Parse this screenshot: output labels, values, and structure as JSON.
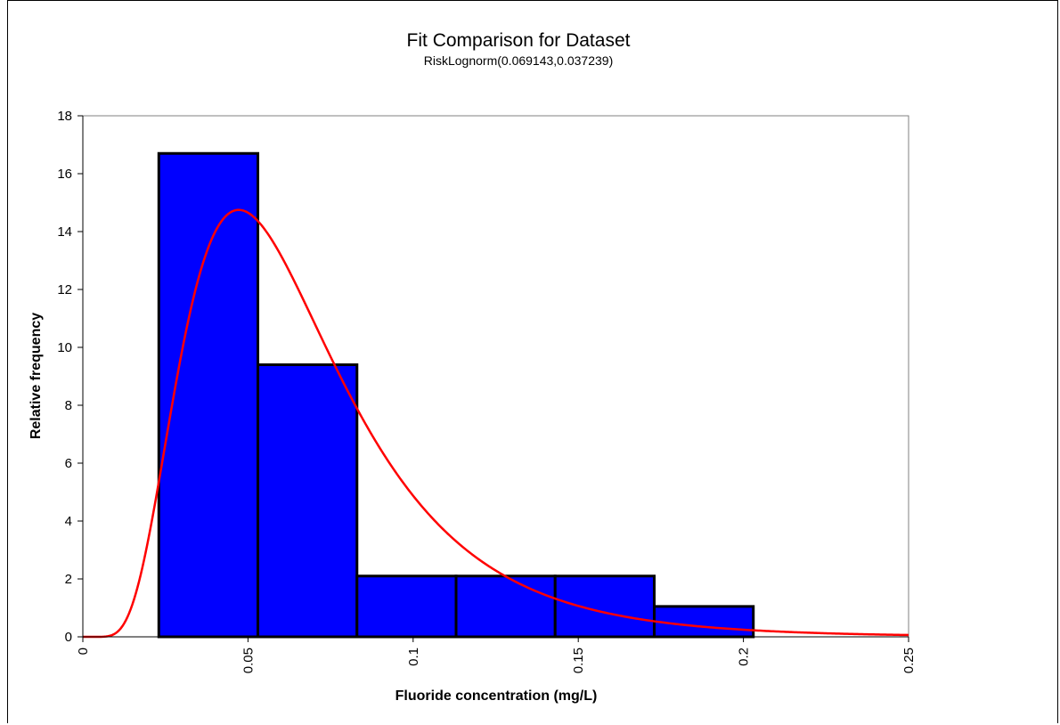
{
  "chart_data": {
    "type": "bar",
    "title": "Fit Comparison for Dataset",
    "subtitle": "RiskLognorm(0.069143,0.037239)",
    "xlabel": "Fluoride concentration (mg/L)",
    "ylabel": "Relative frequency",
    "xlim": [
      0,
      0.25
    ],
    "ylim": [
      0,
      18
    ],
    "x_ticks": [
      0,
      0.05,
      0.1,
      0.15,
      0.2,
      0.25
    ],
    "x_tick_labels": [
      "0",
      "0.05",
      "0.1",
      "0.15",
      "0.2",
      "0.25"
    ],
    "y_ticks": [
      0,
      2,
      4,
      6,
      8,
      10,
      12,
      14,
      16,
      18
    ],
    "y_tick_labels": [
      "0",
      "2",
      "4",
      "6",
      "8",
      "10",
      "12",
      "14",
      "16",
      "18"
    ],
    "grid": false,
    "histogram": {
      "bins": [
        {
          "x0": 0.023,
          "x1": 0.053,
          "value": 16.7
        },
        {
          "x0": 0.053,
          "x1": 0.083,
          "value": 9.4
        },
        {
          "x0": 0.083,
          "x1": 0.113,
          "value": 2.1
        },
        {
          "x0": 0.113,
          "x1": 0.143,
          "value": 2.1
        },
        {
          "x0": 0.143,
          "x1": 0.173,
          "value": 2.1
        },
        {
          "x0": 0.173,
          "x1": 0.203,
          "value": 1.05
        }
      ],
      "color": "#0000FF",
      "edge_color": "#000000"
    },
    "fit_curve": {
      "distribution": "RiskLognorm",
      "mean": 0.069143,
      "stdev": 0.037239,
      "color": "#FF0000"
    }
  }
}
